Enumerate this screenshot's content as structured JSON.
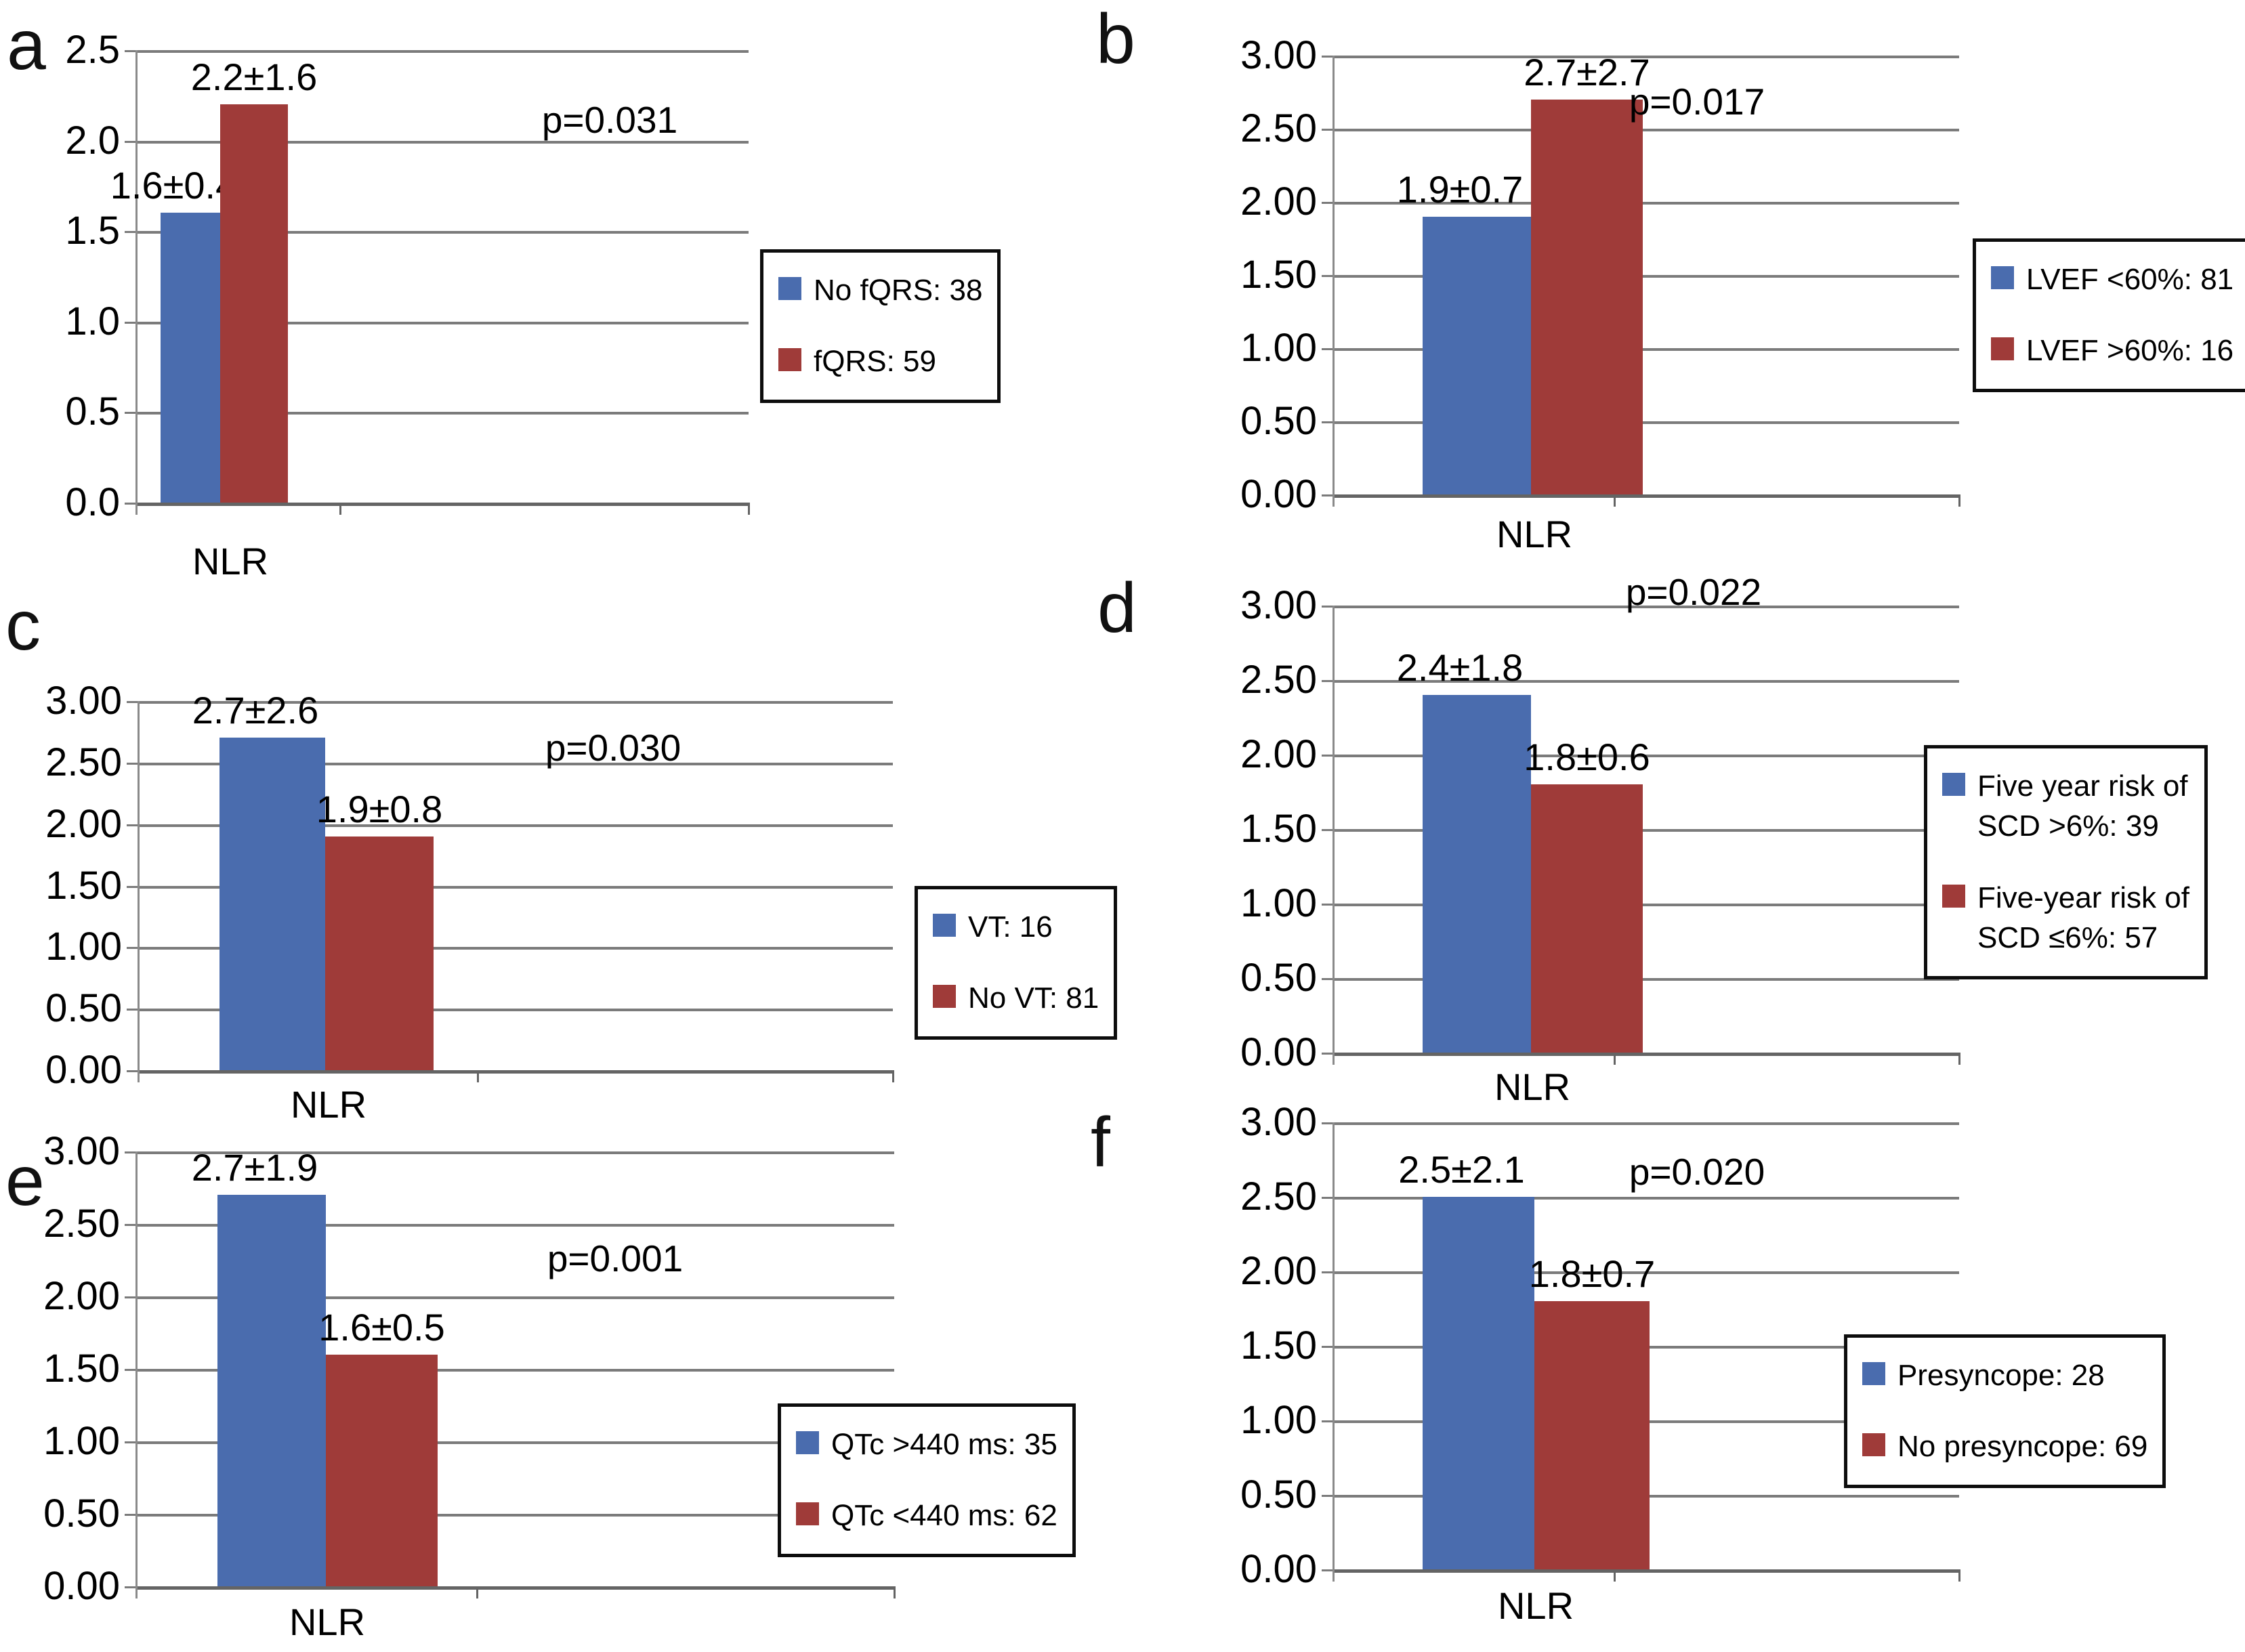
{
  "figure": {
    "background": "#ffffff"
  },
  "colors": {
    "bar_blue": "#4A6CAE",
    "bar_red": "#9F3B39",
    "gridline": "#7b7b7b",
    "axis": "#646464",
    "text": "#000000",
    "legend_border": "#0d0d0d"
  },
  "chart_data": [
    {
      "id": "a",
      "panel_letter": "a",
      "type": "bar",
      "xlabel": "NLR",
      "ylabel": "",
      "ylim": [
        0,
        2.5
      ],
      "ytick_step": 0.5,
      "grid": true,
      "legend_position": "right",
      "yticks": [
        "2.5",
        "2.0",
        "1.5",
        "1.0",
        "0.5",
        "0.0"
      ],
      "categories": [
        "NLR"
      ],
      "series": [
        {
          "name": "No fQRS: 38",
          "values": [
            1.6
          ],
          "sd": [
            0.4
          ],
          "value_label": "1.6±0.4",
          "color": "#4A6CAE"
        },
        {
          "name": "fQRS: 59",
          "values": [
            2.2
          ],
          "sd": [
            1.6
          ],
          "value_label": "2.2±1.6",
          "color": "#9F3B39"
        }
      ],
      "annotations": {
        "p_value": "p=0.031"
      }
    },
    {
      "id": "b",
      "panel_letter": "b",
      "type": "bar",
      "xlabel": "NLR",
      "ylabel": "",
      "ylim": [
        0,
        3.0
      ],
      "ytick_step": 0.5,
      "grid": true,
      "legend_position": "right",
      "yticks": [
        "3.00",
        "2.50",
        "2.00",
        "1.50",
        "1.00",
        "0.50",
        "0.00"
      ],
      "categories": [
        "NLR"
      ],
      "series": [
        {
          "name": "LVEF <60%: 81",
          "values": [
            1.9
          ],
          "sd": [
            0.7
          ],
          "value_label": "1.9±0.7",
          "color": "#4A6CAE"
        },
        {
          "name": "LVEF >60%: 16",
          "values": [
            2.7
          ],
          "sd": [
            2.7
          ],
          "value_label": "2.7±2.7",
          "color": "#9F3B39"
        }
      ],
      "annotations": {
        "p_value": "p=0.017"
      }
    },
    {
      "id": "c",
      "panel_letter": "c",
      "type": "bar",
      "xlabel": "NLR",
      "ylabel": "",
      "ylim": [
        0,
        3.0
      ],
      "ytick_step": 0.5,
      "grid": true,
      "legend_position": "right",
      "yticks": [
        "3.00",
        "2.50",
        "2.00",
        "1.50",
        "1.00",
        "0.50",
        "0.00"
      ],
      "categories": [
        "NLR"
      ],
      "series": [
        {
          "name": "VT: 16",
          "values": [
            2.7
          ],
          "sd": [
            2.6
          ],
          "value_label": "2.7±2.6",
          "color": "#4A6CAE"
        },
        {
          "name": "No VT: 81",
          "values": [
            1.9
          ],
          "sd": [
            0.8
          ],
          "value_label": "1.9±0.8",
          "color": "#9F3B39"
        }
      ],
      "annotations": {
        "p_value": "p=0.030"
      }
    },
    {
      "id": "d",
      "panel_letter": "d",
      "type": "bar",
      "xlabel": "NLR",
      "ylabel": "",
      "ylim": [
        0,
        3.0
      ],
      "ytick_step": 0.5,
      "grid": true,
      "legend_position": "right",
      "yticks": [
        "3.00",
        "2.50",
        "2.00",
        "1.50",
        "1.00",
        "0.50",
        "0.00"
      ],
      "categories": [
        "NLR"
      ],
      "series": [
        {
          "name": "Five year risk of\nSCD >6%: 39",
          "values": [
            2.4
          ],
          "sd": [
            1.8
          ],
          "value_label": "2.4±1.8",
          "color": "#4A6CAE"
        },
        {
          "name": "Five-year risk of\nSCD ≤6%: 57",
          "values": [
            1.8
          ],
          "sd": [
            0.6
          ],
          "value_label": "1.8±0.6",
          "color": "#9F3B39"
        }
      ],
      "annotations": {
        "p_value": "p=0.022"
      }
    },
    {
      "id": "e",
      "panel_letter": "e",
      "type": "bar",
      "xlabel": "NLR",
      "ylabel": "",
      "ylim": [
        0,
        3.0
      ],
      "ytick_step": 0.5,
      "grid": true,
      "legend_position": "right",
      "yticks": [
        "3.00",
        "2.50",
        "2.00",
        "1.50",
        "1.00",
        "0.50",
        "0.00"
      ],
      "categories": [
        "NLR"
      ],
      "series": [
        {
          "name": "QTc >440 ms: 35",
          "values": [
            2.7
          ],
          "sd": [
            1.9
          ],
          "value_label": "2.7±1.9",
          "color": "#4A6CAE"
        },
        {
          "name": "QTc <440 ms: 62",
          "values": [
            1.6
          ],
          "sd": [
            0.5
          ],
          "value_label": "1.6±0.5",
          "color": "#9F3B39"
        }
      ],
      "annotations": {
        "p_value": "p=0.001"
      }
    },
    {
      "id": "f",
      "panel_letter": "f",
      "type": "bar",
      "xlabel": "NLR",
      "ylabel": "",
      "ylim": [
        0,
        3.0
      ],
      "ytick_step": 0.5,
      "grid": true,
      "legend_position": "right",
      "yticks": [
        "3.00",
        "2.50",
        "2.00",
        "1.50",
        "1.00",
        "0.50",
        "0.00"
      ],
      "categories": [
        "NLR"
      ],
      "series": [
        {
          "name": "Presyncope: 28",
          "values": [
            2.5
          ],
          "sd": [
            2.1
          ],
          "value_label": "2.5±2.1",
          "color": "#4A6CAE"
        },
        {
          "name": "No presyncope: 69",
          "values": [
            1.8
          ],
          "sd": [
            0.7
          ],
          "value_label": "1.8±0.7",
          "color": "#9F3B39"
        }
      ],
      "annotations": {
        "p_value": "p=0.020"
      }
    }
  ]
}
